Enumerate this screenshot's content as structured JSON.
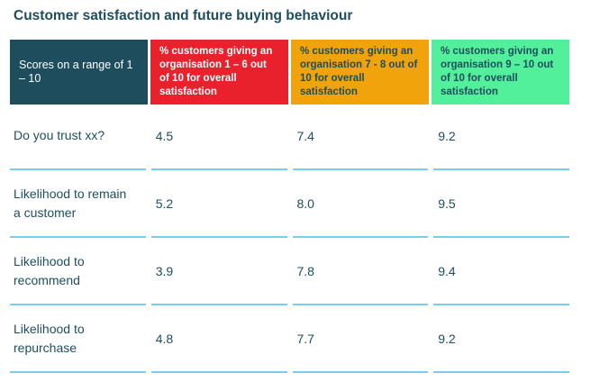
{
  "page": {
    "title": "Customer satisfaction and future buying behaviour"
  },
  "colors": {
    "teal": "#1E4E5E",
    "red": "#E8212D",
    "orange": "#F0A30B",
    "green": "#53F09B",
    "underline": "#76CFF3",
    "header_text_light": "#FFFFFF"
  },
  "table": {
    "headers": [
      {
        "lines": [
          "Scores on a range of 1 – 10"
        ]
      },
      {
        "lines": [
          "% customers giving an",
          "organisation 1 – 6 out",
          "of 10 for overall satisfaction"
        ]
      },
      {
        "lines": [
          "% customers giving an",
          "organisation 7 - 8 out of",
          "10 for overall satisfaction"
        ]
      },
      {
        "lines": [
          "% customers giving an",
          "organisation 9 – 10 out",
          "of 10 for overall satisfaction"
        ]
      }
    ],
    "rows": [
      {
        "label": "Do you trust xx?",
        "values": [
          "4.5",
          "7.4",
          "9.2"
        ]
      },
      {
        "label": "Likelihood to remain\na customer",
        "values": [
          "5.2",
          "8.0",
          "9.5"
        ]
      },
      {
        "label": "Likelihood to\nrecommend",
        "values": [
          "3.9",
          "7.8",
          "9.4"
        ]
      },
      {
        "label": "Likelihood to\nrepurchase",
        "values": [
          "4.8",
          "7.7",
          "9.2"
        ]
      }
    ]
  },
  "chart_data": {
    "type": "table",
    "title": "Customer satisfaction and future buying behaviour",
    "columns": [
      "Scores on a range of 1 – 10",
      "% customers giving an organisation 1 – 6 out of 10 for overall satisfaction",
      "% customers giving an organisation 7 - 8 out of 10 for overall satisfaction",
      "% customers giving an organisation 9 – 10 out of 10 for overall satisfaction"
    ],
    "rows": [
      [
        "Do you trust xx?",
        4.5,
        7.4,
        9.2
      ],
      [
        "Likelihood to remain a customer",
        5.2,
        8.0,
        9.5
      ],
      [
        "Likelihood to recommend",
        3.9,
        7.8,
        9.4
      ],
      [
        "Likelihood to repurchase",
        4.8,
        7.7,
        9.2
      ]
    ],
    "column_colors": [
      "#1E4E5E",
      "#E8212D",
      "#F0A30B",
      "#53F09B"
    ]
  }
}
